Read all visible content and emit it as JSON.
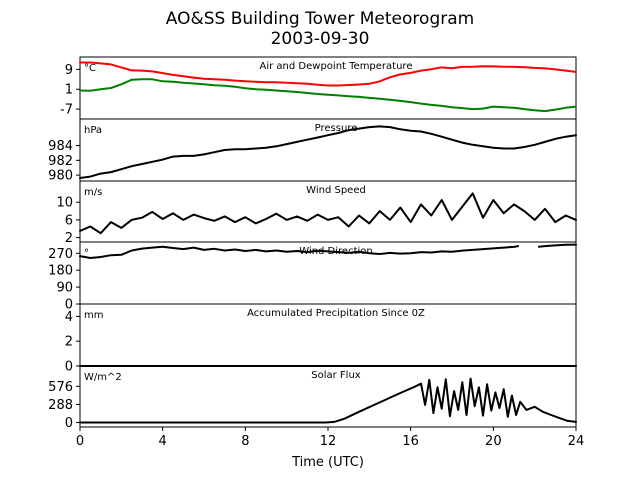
{
  "chart_data": {
    "type": "line",
    "title": "AO&SS Building Tower Meteorogram",
    "subtitle": "2003-09-30",
    "xlabel": "Time (UTC)",
    "xlim": [
      0,
      24
    ],
    "x_ticks": [
      0,
      4,
      8,
      12,
      16,
      20,
      24
    ],
    "panels": [
      {
        "key": "temperature",
        "title": "Air and Dewpoint Temperature",
        "unit": "°C",
        "ylim": [
          -11,
          14
        ],
        "y_ticks": [
          -7,
          1,
          9
        ],
        "series": [
          {
            "key": "air",
            "color": "#ff0000",
            "x": [
              0,
              0.5,
              1,
              1.5,
              2,
              2.5,
              3,
              3.5,
              4,
              4.5,
              5,
              5.5,
              6,
              6.5,
              7,
              7.5,
              8,
              8.5,
              9,
              9.5,
              10,
              10.5,
              11,
              11.5,
              12,
              12.5,
              13,
              13.5,
              14,
              14.5,
              15,
              15.5,
              16,
              16.5,
              17,
              17.5,
              18,
              18.5,
              19,
              19.5,
              20,
              20.5,
              21,
              21.5,
              22,
              22.5,
              23,
              23.5,
              24
            ],
            "values": [
              11.8,
              11.8,
              11.4,
              11.0,
              9.8,
              8.6,
              8.5,
              8.2,
              7.5,
              6.8,
              6.2,
              5.7,
              5.2,
              5.0,
              4.8,
              4.5,
              4.2,
              4.0,
              3.8,
              3.8,
              3.6,
              3.4,
              3.2,
              2.8,
              2.5,
              2.5,
              2.7,
              2.9,
              3.2,
              4.2,
              5.8,
              7.0,
              7.6,
              8.5,
              9.1,
              9.8,
              9.5,
              10.0,
              10.1,
              10.3,
              10.2,
              10.1,
              10.0,
              9.9,
              9.6,
              9.4,
              9.0,
              8.5,
              8.0
            ]
          },
          {
            "key": "dewpoint",
            "color": "#008000",
            "x": [
              0,
              0.5,
              1,
              1.5,
              2,
              2.5,
              3,
              3.5,
              4,
              4.5,
              5,
              5.5,
              6,
              6.5,
              7,
              7.5,
              8,
              8.5,
              9,
              9.5,
              10,
              10.5,
              11,
              11.5,
              12,
              12.5,
              13,
              13.5,
              14,
              14.5,
              15,
              15.5,
              16,
              16.5,
              17,
              17.5,
              18,
              18.5,
              19,
              19.5,
              20,
              20.5,
              21,
              21.5,
              22,
              22.5,
              23,
              23.5,
              24
            ],
            "values": [
              0.5,
              0.4,
              1.0,
              1.5,
              3.0,
              4.8,
              5.0,
              5.0,
              4.2,
              4.0,
              3.6,
              3.3,
              3.0,
              2.6,
              2.4,
              2.0,
              1.4,
              1.0,
              0.8,
              0.5,
              0.2,
              -0.1,
              -0.5,
              -0.9,
              -1.2,
              -1.5,
              -1.8,
              -2.1,
              -2.5,
              -2.8,
              -3.2,
              -3.7,
              -4.2,
              -4.8,
              -5.3,
              -5.7,
              -6.3,
              -6.6,
              -7.0,
              -6.8,
              -6.0,
              -6.3,
              -6.5,
              -7.0,
              -7.5,
              -7.8,
              -7.2,
              -6.5,
              -6.0
            ]
          }
        ]
      },
      {
        "key": "pressure",
        "title": "Pressure",
        "unit": "hPa",
        "ylim": [
          979.2,
          987.6
        ],
        "y_ticks": [
          980,
          982,
          984
        ],
        "series": [
          {
            "key": "pressure",
            "color": "#000000",
            "x": [
              0,
              0.5,
              1,
              1.5,
              2,
              2.5,
              3,
              3.5,
              4,
              4.5,
              5,
              5.5,
              6,
              6.5,
              7,
              7.5,
              8,
              8.5,
              9,
              9.5,
              10,
              10.5,
              11,
              11.5,
              12,
              12.5,
              13,
              13.5,
              14,
              14.5,
              15,
              15.5,
              16,
              16.5,
              17,
              17.5,
              18,
              18.5,
              19,
              19.5,
              20,
              20.5,
              21,
              21.5,
              22,
              22.5,
              23,
              23.5,
              24
            ],
            "values": [
              979.6,
              979.8,
              980.2,
              980.4,
              980.8,
              981.2,
              981.5,
              981.8,
              982.1,
              982.5,
              982.6,
              982.6,
              982.8,
              983.1,
              983.4,
              983.5,
              983.5,
              983.6,
              983.7,
              983.9,
              984.2,
              984.5,
              984.8,
              985.1,
              985.4,
              985.7,
              986.1,
              986.3,
              986.5,
              986.6,
              986.5,
              986.2,
              986.0,
              985.9,
              985.6,
              985.2,
              984.8,
              984.4,
              984.1,
              983.9,
              983.7,
              983.6,
              983.6,
              983.8,
              984.1,
              984.5,
              984.9,
              985.2,
              985.4
            ]
          }
        ]
      },
      {
        "key": "wind_speed",
        "title": "Wind Speed",
        "unit": "m/s",
        "ylim": [
          1,
          14.8
        ],
        "y_ticks": [
          2,
          6,
          10
        ],
        "series": [
          {
            "key": "wind_speed",
            "color": "#000000",
            "x": [
              0,
              0.5,
              1,
              1.5,
              2,
              2.5,
              3,
              3.5,
              4,
              4.5,
              5,
              5.5,
              6,
              6.5,
              7,
              7.5,
              8,
              8.5,
              9,
              9.5,
              10,
              10.5,
              11,
              11.5,
              12,
              12.5,
              13,
              13.5,
              14,
              14.5,
              15,
              15.5,
              16,
              16.5,
              17,
              17.5,
              18,
              18.5,
              19,
              19.5,
              20,
              20.5,
              21,
              21.5,
              22,
              22.5,
              23,
              23.5,
              24
            ],
            "values": [
              3.5,
              4.5,
              3.0,
              5.5,
              4.2,
              6.0,
              6.5,
              7.8,
              6.2,
              7.5,
              6.0,
              7.2,
              6.4,
              5.8,
              6.8,
              5.5,
              6.6,
              5.2,
              6.2,
              7.4,
              6.0,
              6.8,
              5.8,
              7.2,
              6.0,
              6.6,
              4.5,
              7.0,
              5.2,
              8.0,
              6.0,
              8.8,
              5.5,
              9.5,
              7.0,
              10.5,
              6.0,
              9.0,
              12.0,
              6.5,
              10.5,
              7.5,
              9.5,
              8.0,
              6.0,
              8.5,
              5.5,
              7.0,
              6.0
            ]
          }
        ]
      },
      {
        "key": "wind_direction",
        "title": "Wind Direction",
        "unit": "°",
        "ylim": [
          0,
          330
        ],
        "y_ticks": [
          0,
          90,
          180,
          270
        ],
        "series": [
          {
            "key": "wind_direction_a",
            "color": "#000000",
            "x": [
              0,
              0.5,
              1,
              1.5,
              2,
              2.5,
              3,
              3.5,
              4,
              4.5,
              5,
              5.5,
              6,
              6.5,
              7,
              7.5,
              8,
              8.5,
              9,
              9.5,
              10,
              10.5,
              11,
              11.5,
              12,
              12.5,
              13,
              13.5,
              14,
              14.5,
              15,
              15.5,
              16,
              16.5,
              17,
              17.5,
              18,
              18.5,
              19,
              19.5,
              20,
              20.5,
              21,
              21.2
            ],
            "values": [
              255,
              245,
              250,
              260,
              262,
              285,
              295,
              300,
              305,
              298,
              292,
              300,
              288,
              294,
              285,
              290,
              282,
              288,
              280,
              285,
              278,
              282,
              276,
              283,
              280,
              276,
              272,
              278,
              270,
              266,
              272,
              268,
              270,
              276,
              274,
              280,
              278,
              284,
              288,
              292,
              296,
              300,
              304,
              308
            ]
          },
          {
            "key": "wind_direction_b",
            "color": "#000000",
            "x": [
              22.2,
              22.5,
              23,
              23.5,
              24
            ],
            "values": [
              305,
              308,
              312,
              315,
              316
            ]
          }
        ]
      },
      {
        "key": "precipitation",
        "title": "Accumulated Precipitation Since 0Z",
        "unit": "mm",
        "ylim": [
          0,
          5
        ],
        "y_ticks": [
          0,
          2,
          4
        ],
        "series": [
          {
            "key": "precipitation",
            "color": "#000000",
            "x": [
              0,
              24
            ],
            "values": [
              0,
              0
            ]
          }
        ]
      },
      {
        "key": "solar_flux",
        "title": "Solar Flux",
        "unit": "W/m^2",
        "ylim": [
          -72,
          900
        ],
        "y_ticks": [
          0,
          288,
          576
        ],
        "series": [
          {
            "key": "solar_flux",
            "color": "#000000",
            "x": [
              0,
              11.9,
              12.3,
              12.8,
              13.5,
              14.5,
              15.5,
              16.2,
              16.5,
              16.7,
              16.9,
              17.1,
              17.3,
              17.5,
              17.7,
              17.9,
              18.1,
              18.3,
              18.5,
              18.7,
              18.9,
              19.1,
              19.3,
              19.5,
              19.7,
              19.9,
              20.1,
              20.3,
              20.5,
              20.7,
              20.9,
              21.1,
              21.3,
              21.6,
              22.0,
              22.4,
              22.8,
              23.2,
              23.6,
              24
            ],
            "values": [
              0,
              0,
              10,
              60,
              170,
              320,
              470,
              570,
              620,
              280,
              680,
              150,
              560,
              220,
              690,
              100,
              500,
              200,
              640,
              120,
              700,
              260,
              560,
              110,
              610,
              190,
              480,
              230,
              530,
              90,
              430,
              120,
              330,
              200,
              250,
              170,
              120,
              70,
              25,
              10
            ]
          }
        ]
      }
    ]
  }
}
